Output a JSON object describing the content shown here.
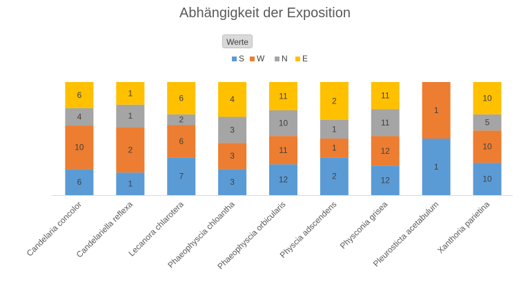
{
  "chart_data": {
    "type": "bar",
    "stacked": true,
    "percent_stacked": true,
    "title": "Abhängigkeit der Exposition",
    "field_button": "Werte",
    "legend_position": "top",
    "categories": [
      "Candelaria concolor",
      "Candelariella reflexa",
      "Lecanora chlarotera",
      "Phaeophyscia chloantha",
      "Phaeophyscia orbicularis",
      "Physcia adscendens",
      "Physconia grisea",
      "Pleurosticta acetabulum",
      "Xanthoria parietina"
    ],
    "series": [
      {
        "name": "S",
        "color": "#5b9bd5",
        "values": [
          6,
          1,
          7,
          3,
          12,
          2,
          12,
          1,
          10
        ]
      },
      {
        "name": "W",
        "color": "#ed7d31",
        "values": [
          10,
          2,
          6,
          3,
          11,
          1,
          12,
          1,
          10
        ]
      },
      {
        "name": "N",
        "color": "#a5a5a5",
        "values": [
          4,
          1,
          2,
          3,
          10,
          1,
          11,
          0,
          5
        ]
      },
      {
        "name": "E",
        "color": "#ffc000",
        "values": [
          6,
          1,
          6,
          4,
          11,
          2,
          11,
          0,
          10
        ]
      }
    ],
    "grid": false
  }
}
